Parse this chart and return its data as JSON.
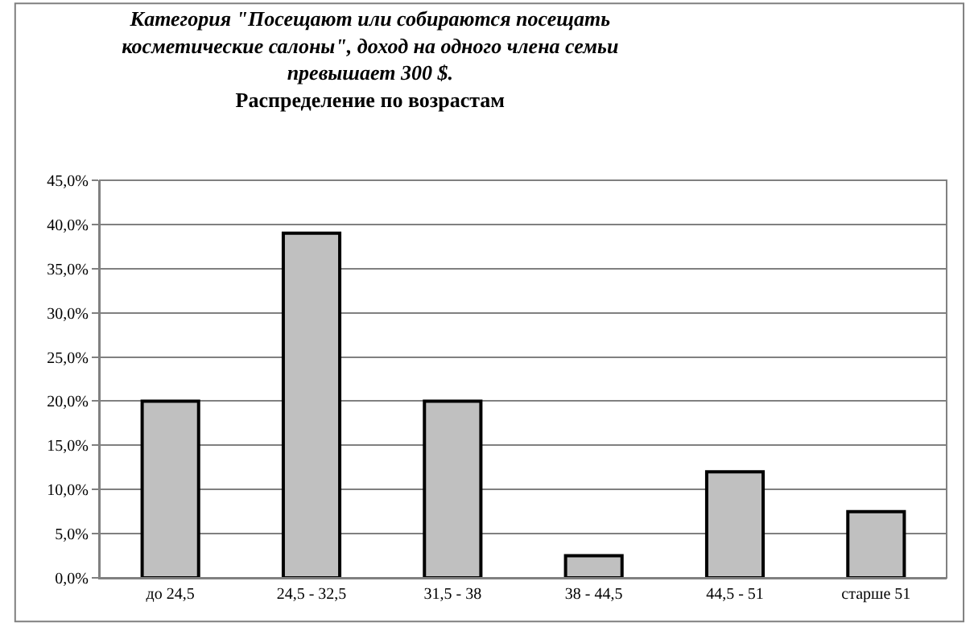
{
  "chart_data": {
    "type": "bar",
    "title": "Категория \"Посещают или собираются посещать\nкосметические салоны\", доход на одного члена семьи\nпревышает 300 $.",
    "subtitle": "Распределение по возрастам",
    "categories": [
      "до 24,5",
      "24,5 - 32,5",
      "31,5 - 38",
      "38 - 44,5",
      "44,5 - 51",
      "старше 51"
    ],
    "values": [
      20,
      39,
      20,
      2.5,
      12,
      7.5
    ],
    "color": "#c0c0c0",
    "ylim": [
      0,
      45
    ],
    "yticks": [
      {
        "value": 0,
        "label": "0,0%"
      },
      {
        "value": 5,
        "label": "5,0%"
      },
      {
        "value": 10,
        "label": "10,0%"
      },
      {
        "value": 15,
        "label": "15,0%"
      },
      {
        "value": 20,
        "label": "20,0%"
      },
      {
        "value": 25,
        "label": "25,0%"
      },
      {
        "value": 30,
        "label": "30,0%"
      },
      {
        "value": 35,
        "label": "35,0%"
      },
      {
        "value": 40,
        "label": "40,0%"
      },
      {
        "value": 45,
        "label": "45,0%"
      }
    ],
    "grid": "y"
  }
}
